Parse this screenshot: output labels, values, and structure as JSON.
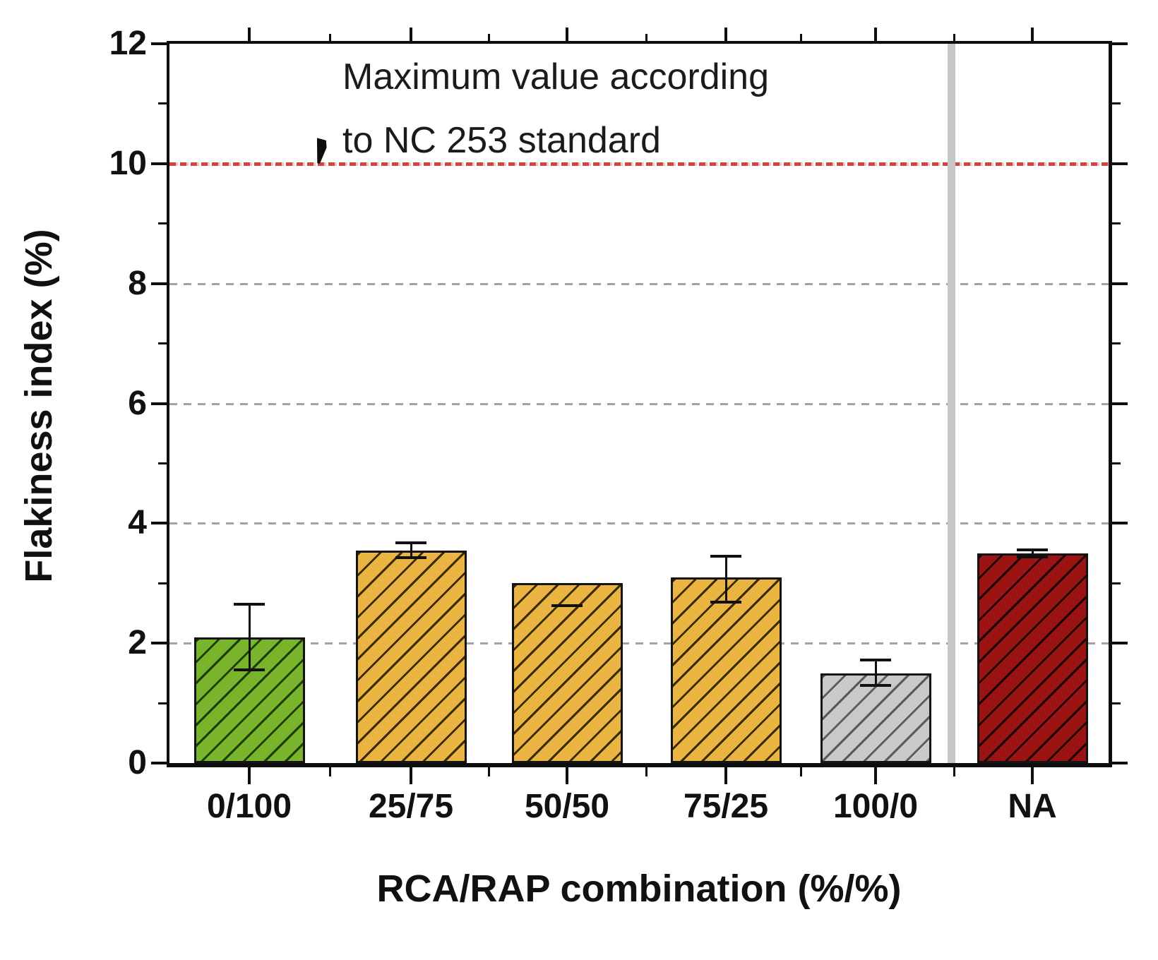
{
  "chart_data": {
    "type": "bar",
    "title": "",
    "xlabel": "RCA/RAP combination (%/%)",
    "ylabel": "Flakiness index (%)",
    "ylim": [
      0,
      12
    ],
    "grid": "dashed horizontal at even values",
    "legend": "none",
    "yticks_major": [
      0,
      2,
      4,
      6,
      8,
      10,
      12
    ],
    "yticks_minor": [
      1,
      3,
      5,
      7,
      9,
      11
    ],
    "gridlines_at": [
      2,
      4,
      6,
      8
    ],
    "categories": [
      "0/100",
      "25/75",
      "50/50",
      "75/25",
      "100/0",
      "NA"
    ],
    "values": [
      2.1,
      3.55,
      3.0,
      3.1,
      1.5,
      3.5
    ],
    "errors_up": [
      0.55,
      0.12,
      0,
      0.35,
      0.22,
      0.06
    ],
    "errors_down": [
      0.55,
      0.12,
      0.37,
      0.42,
      0.2,
      0.06
    ],
    "error_line_hidden": [
      false,
      false,
      true,
      false,
      false,
      false
    ],
    "bar_colors": [
      "#79b42d",
      "#e9b442",
      "#e9b442",
      "#e9b442",
      "#c9c9c9",
      "#9c1313"
    ],
    "bar_hatch_colors": [
      "#223b06",
      "#3a2a05",
      "#3a2a05",
      "#3a2a05",
      "#5a5a5a",
      "#1c0303"
    ],
    "hatch_style": "diagonal /",
    "reference_line": {
      "value": 10,
      "color": "#cf4640",
      "label_line1": "Maximum value according",
      "label_line2": "to NC 253 standard"
    },
    "separator": {
      "before_category": "NA",
      "color": "#c6c6c6"
    }
  },
  "colors": {
    "background": "#ffffff",
    "axis": "#0d0d0d",
    "gridline": "#a3a3a3",
    "text": "#111111"
  }
}
